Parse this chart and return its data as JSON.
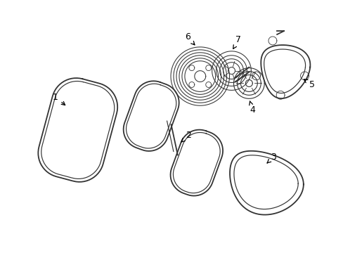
{
  "bg_color": "#ffffff",
  "line_color": "#333333",
  "text_color": "#000000",
  "figsize": [
    4.89,
    3.6
  ],
  "dpi": 100
}
